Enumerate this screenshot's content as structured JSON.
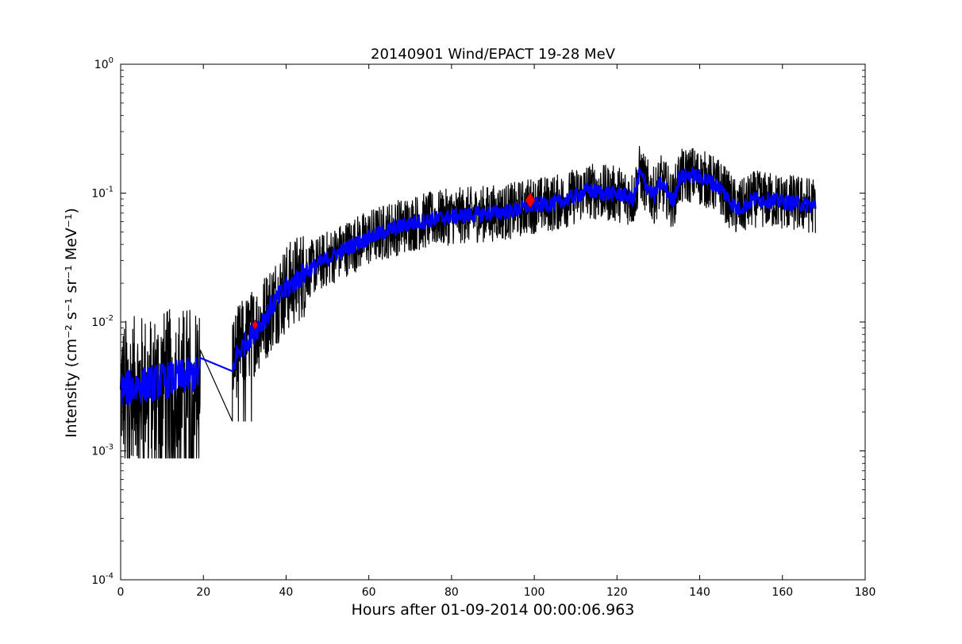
{
  "chart_data": {
    "type": "line",
    "title": "20140901 Wind/EPACT 19-28 MeV",
    "xlabel": "Hours after 01-09-2014 00:00:06.963",
    "ylabel": "Intensity (cm⁻² s⁻¹ sr⁻¹ MeV⁻¹)",
    "xlim": [
      0,
      180
    ],
    "ylim": [
      0.0001,
      1
    ],
    "yscale": "log",
    "grid": false,
    "x_ticks": [
      "0",
      "20",
      "40",
      "60",
      "80",
      "100",
      "120",
      "140",
      "160",
      "180"
    ],
    "y_ticks": [
      {
        "base": "10",
        "exp": "-4"
      },
      {
        "base": "10",
        "exp": "-3"
      },
      {
        "base": "10",
        "exp": "-2"
      },
      {
        "base": "10",
        "exp": "-1"
      },
      {
        "base": "10",
        "exp": "0"
      }
    ],
    "colors": {
      "raw": "#000000",
      "smoothed": "#0000ff",
      "marker": "#ff0000"
    },
    "series": [
      {
        "style": "raw",
        "points": [
          [
            0,
            0.003
          ],
          [
            19.3,
            0.004
          ],
          [
            27,
            0.005
          ],
          [
            29,
            0.0065
          ],
          [
            31,
            0.0075
          ],
          [
            33,
            0.009
          ],
          [
            35,
            0.011
          ],
          [
            37,
            0.014
          ],
          [
            40,
            0.018
          ],
          [
            43,
            0.022
          ],
          [
            46,
            0.026
          ],
          [
            50,
            0.031
          ],
          [
            55,
            0.038
          ],
          [
            60,
            0.045
          ],
          [
            65,
            0.052
          ],
          [
            70,
            0.058
          ],
          [
            75,
            0.062
          ],
          [
            80,
            0.066
          ],
          [
            85,
            0.068
          ],
          [
            90,
            0.07
          ],
          [
            95,
            0.073
          ],
          [
            99,
            0.08
          ],
          [
            103,
            0.082
          ],
          [
            106,
            0.085
          ],
          [
            110,
            0.095
          ],
          [
            113,
            0.105
          ],
          [
            117,
            0.1
          ],
          [
            121,
            0.098
          ],
          [
            124,
            0.09
          ],
          [
            125.5,
            0.145
          ],
          [
            127,
            0.115
          ],
          [
            129,
            0.095
          ],
          [
            130.5,
            0.12
          ],
          [
            132,
            0.105
          ],
          [
            133.5,
            0.085
          ],
          [
            135,
            0.13
          ],
          [
            138,
            0.14
          ],
          [
            142,
            0.125
          ],
          [
            145,
            0.11
          ],
          [
            147,
            0.09
          ],
          [
            149,
            0.075
          ],
          [
            151,
            0.08
          ],
          [
            153,
            0.09
          ],
          [
            157,
            0.088
          ],
          [
            161,
            0.085
          ],
          [
            165,
            0.082
          ],
          [
            168,
            0.08
          ]
        ]
      },
      {
        "style": "smoothed",
        "points": [
          [
            0,
            0.003
          ],
          [
            19.3,
            0.004
          ],
          [
            27,
            0.004
          ],
          [
            28,
            0.0055
          ],
          [
            31,
            0.0075
          ],
          [
            33,
            0.009
          ],
          [
            35,
            0.011
          ],
          [
            37,
            0.014
          ],
          [
            40,
            0.018
          ],
          [
            43,
            0.022
          ],
          [
            46,
            0.026
          ],
          [
            50,
            0.031
          ],
          [
            55,
            0.038
          ],
          [
            60,
            0.045
          ],
          [
            65,
            0.052
          ],
          [
            70,
            0.058
          ],
          [
            75,
            0.062
          ],
          [
            80,
            0.066
          ],
          [
            85,
            0.068
          ],
          [
            90,
            0.07
          ],
          [
            95,
            0.073
          ],
          [
            99,
            0.08
          ],
          [
            103,
            0.082
          ],
          [
            106,
            0.085
          ],
          [
            110,
            0.095
          ],
          [
            113,
            0.105
          ],
          [
            117,
            0.1
          ],
          [
            121,
            0.098
          ],
          [
            124,
            0.09
          ],
          [
            125.5,
            0.145
          ],
          [
            127,
            0.115
          ],
          [
            129,
            0.095
          ],
          [
            130.5,
            0.12
          ],
          [
            132,
            0.105
          ],
          [
            133.5,
            0.085
          ],
          [
            135,
            0.13
          ],
          [
            138,
            0.14
          ],
          [
            142,
            0.125
          ],
          [
            145,
            0.11
          ],
          [
            147,
            0.09
          ],
          [
            149,
            0.075
          ],
          [
            151,
            0.08
          ],
          [
            153,
            0.09
          ],
          [
            157,
            0.088
          ],
          [
            161,
            0.085
          ],
          [
            165,
            0.082
          ],
          [
            168,
            0.08
          ]
        ]
      }
    ],
    "markers": [
      {
        "x": 32.5,
        "y": 0.0095,
        "shape": "diamond",
        "color": "#ff0000"
      },
      {
        "x": 99,
        "y": 0.088,
        "shape": "diamond",
        "color": "#ff0000"
      }
    ]
  }
}
